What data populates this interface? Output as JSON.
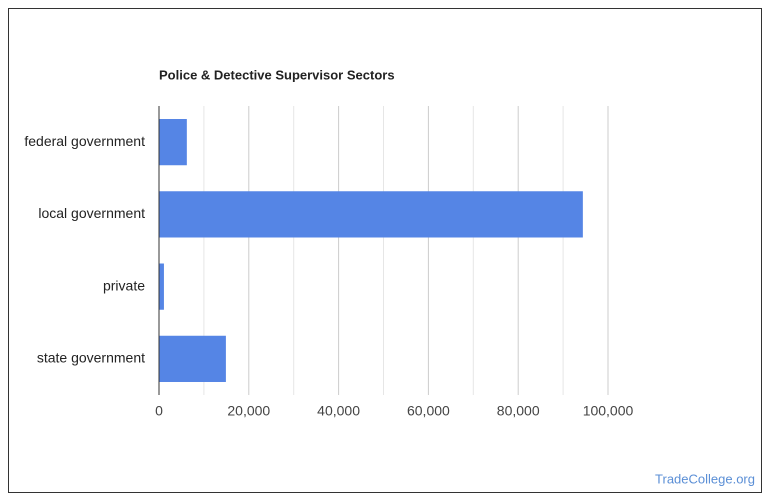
{
  "chart_data": {
    "type": "hbar",
    "title": "Police & Detective Supervisor Sectors",
    "categories": [
      "federal government",
      "local government",
      "private",
      "state government"
    ],
    "values": [
      6200,
      94400,
      1100,
      14900
    ],
    "color": "#5585e5",
    "xlim": [
      0,
      100000
    ],
    "xticks": [
      {
        "value": 0,
        "label": "0"
      },
      {
        "value": 20000,
        "label": "20,000"
      },
      {
        "value": 40000,
        "label": "40,000"
      },
      {
        "value": 60000,
        "label": "60,000"
      },
      {
        "value": 80000,
        "label": "80,000"
      },
      {
        "value": 100000,
        "label": "100,000"
      }
    ],
    "xminor": [
      10000,
      30000,
      50000,
      70000,
      90000
    ],
    "grid": true,
    "source": "TradeCollege.org"
  }
}
